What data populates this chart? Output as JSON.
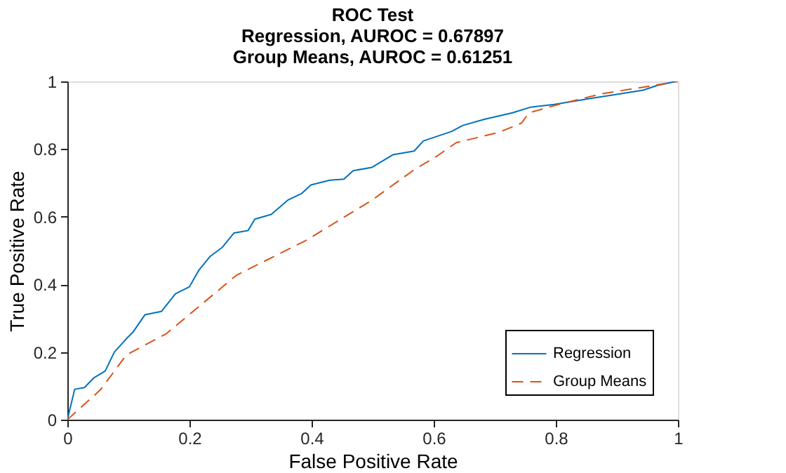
{
  "chart_data": {
    "type": "line",
    "title": "ROC Test\nRegression, AUROC = 0.67897\nGroup Means, AUROC = 0.61251",
    "xlabel": "False Positive Rate",
    "ylabel": "True Positive Rate",
    "xlim": [
      0,
      1
    ],
    "ylim": [
      0,
      1
    ],
    "xticks": [
      0,
      0.2,
      0.4,
      0.6,
      0.8,
      1
    ],
    "yticks": [
      0,
      0.2,
      0.4,
      0.6,
      0.8,
      1
    ],
    "grid": false,
    "legend": "bottom right",
    "marker": "none",
    "series": [
      {
        "name": "Regression",
        "color": "#0072bd",
        "line_style": "solid",
        "x": [
          0,
          0.012,
          0.028,
          0.043,
          0.062,
          0.077,
          0.097,
          0.108,
          0.127,
          0.154,
          0.177,
          0.2,
          0.215,
          0.234,
          0.254,
          0.273,
          0.296,
          0.307,
          0.334,
          0.361,
          0.384,
          0.399,
          0.43,
          0.453,
          0.468,
          0.499,
          0.533,
          0.568,
          0.583,
          0.629,
          0.648,
          0.683,
          0.729,
          0.759,
          0.798,
          0.859,
          0.905,
          0.943,
          0.966,
          0.997,
          1
        ],
        "values": [
          0,
          0.09,
          0.095,
          0.123,
          0.144,
          0.2,
          0.24,
          0.26,
          0.31,
          0.32,
          0.372,
          0.393,
          0.441,
          0.483,
          0.51,
          0.552,
          0.559,
          0.593,
          0.607,
          0.649,
          0.669,
          0.694,
          0.708,
          0.711,
          0.736,
          0.746,
          0.783,
          0.794,
          0.824,
          0.852,
          0.87,
          0.888,
          0.907,
          0.924,
          0.932,
          0.95,
          0.963,
          0.974,
          0.988,
          1,
          1
        ]
      },
      {
        "name": "Group Means",
        "color": "#d95319",
        "line_style": "dashed",
        "x": [
          0,
          0.054,
          0.097,
          0.162,
          0.277,
          0.392,
          0.499,
          0.568,
          0.606,
          0.637,
          0.706,
          0.744,
          0.756,
          0.798,
          0.874,
          0.936,
          1
        ],
        "values": [
          0,
          0.088,
          0.192,
          0.254,
          0.427,
          0.531,
          0.649,
          0.739,
          0.78,
          0.819,
          0.849,
          0.877,
          0.907,
          0.929,
          0.963,
          0.981,
          1
        ]
      }
    ]
  }
}
